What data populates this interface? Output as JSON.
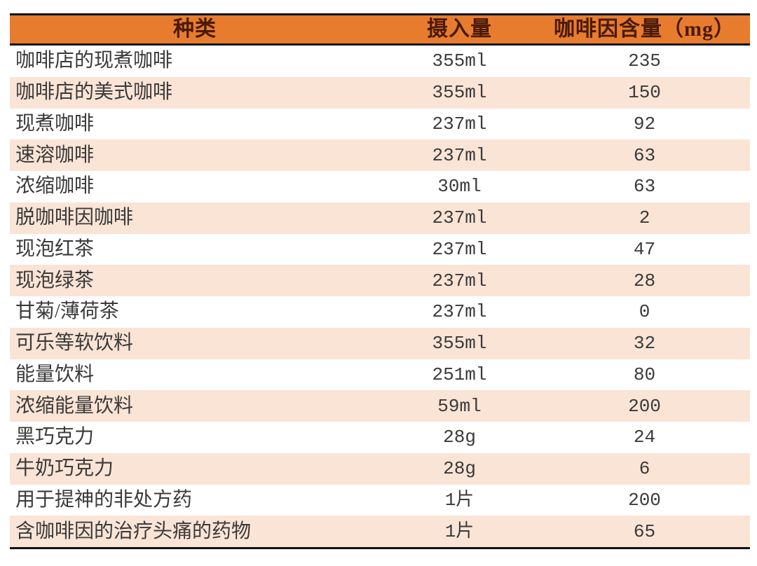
{
  "colors": {
    "header_bg": "#e87c2e",
    "header_text": "#4a1a08",
    "row_alt_bg": "#fae4d6",
    "body_text": "#3a3a3a",
    "border": "#111111"
  },
  "chart_data": {
    "type": "table",
    "columns": [
      {
        "key": "type",
        "label": "种类"
      },
      {
        "key": "intake",
        "label": "摄入量"
      },
      {
        "key": "caffeine",
        "label": "咖啡因含量（mg）"
      }
    ],
    "rows": [
      {
        "type": "咖啡店的现煮咖啡",
        "intake": "355ml",
        "caffeine": "235"
      },
      {
        "type": "咖啡店的美式咖啡",
        "intake": "355ml",
        "caffeine": "150"
      },
      {
        "type": "现煮咖啡",
        "intake": "237ml",
        "caffeine": "92"
      },
      {
        "type": "速溶咖啡",
        "intake": "237ml",
        "caffeine": "63"
      },
      {
        "type": "浓缩咖啡",
        "intake": "30ml",
        "caffeine": "63"
      },
      {
        "type": "脱咖啡因咖啡",
        "intake": "237ml",
        "caffeine": "2"
      },
      {
        "type": "现泡红茶",
        "intake": "237ml",
        "caffeine": "47"
      },
      {
        "type": "现泡绿茶",
        "intake": "237ml",
        "caffeine": "28"
      },
      {
        "type": "甘菊/薄荷茶",
        "intake": "237ml",
        "caffeine": "0"
      },
      {
        "type": "可乐等软饮料",
        "intake": "355ml",
        "caffeine": "32"
      },
      {
        "type": "能量饮料",
        "intake": "251ml",
        "caffeine": "80"
      },
      {
        "type": "浓缩能量饮料",
        "intake": "59ml",
        "caffeine": "200"
      },
      {
        "type": "黑巧克力",
        "intake": "28g",
        "caffeine": "24"
      },
      {
        "type": "牛奶巧克力",
        "intake": "28g",
        "caffeine": "6"
      },
      {
        "type": "用于提神的非处方药",
        "intake": "1片",
        "caffeine": "200"
      },
      {
        "type": "含咖啡因的治疗头痛的药物",
        "intake": "1片",
        "caffeine": "65"
      }
    ]
  }
}
